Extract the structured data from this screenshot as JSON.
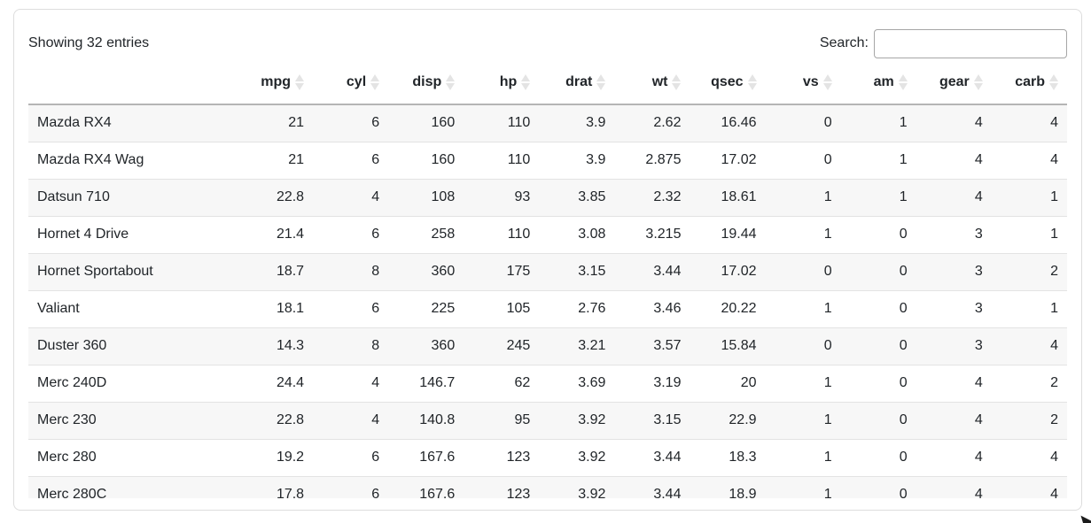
{
  "table": {
    "showing_text": "Showing 32 entries",
    "search_label": "Search:",
    "search_value": "",
    "columns": [
      "",
      "mpg",
      "cyl",
      "disp",
      "hp",
      "drat",
      "wt",
      "qsec",
      "vs",
      "am",
      "gear",
      "carb"
    ],
    "rows": [
      {
        "name": "Mazda RX4",
        "values": [
          "21",
          "6",
          "160",
          "110",
          "3.9",
          "2.62",
          "16.46",
          "0",
          "1",
          "4",
          "4"
        ]
      },
      {
        "name": "Mazda RX4 Wag",
        "values": [
          "21",
          "6",
          "160",
          "110",
          "3.9",
          "2.875",
          "17.02",
          "0",
          "1",
          "4",
          "4"
        ]
      },
      {
        "name": "Datsun 710",
        "values": [
          "22.8",
          "4",
          "108",
          "93",
          "3.85",
          "2.32",
          "18.61",
          "1",
          "1",
          "4",
          "1"
        ]
      },
      {
        "name": "Hornet 4 Drive",
        "values": [
          "21.4",
          "6",
          "258",
          "110",
          "3.08",
          "3.215",
          "19.44",
          "1",
          "0",
          "3",
          "1"
        ]
      },
      {
        "name": "Hornet Sportabout",
        "values": [
          "18.7",
          "8",
          "360",
          "175",
          "3.15",
          "3.44",
          "17.02",
          "0",
          "0",
          "3",
          "2"
        ]
      },
      {
        "name": "Valiant",
        "values": [
          "18.1",
          "6",
          "225",
          "105",
          "2.76",
          "3.46",
          "20.22",
          "1",
          "0",
          "3",
          "1"
        ]
      },
      {
        "name": "Duster 360",
        "values": [
          "14.3",
          "8",
          "360",
          "245",
          "3.21",
          "3.57",
          "15.84",
          "0",
          "0",
          "3",
          "4"
        ]
      },
      {
        "name": "Merc 240D",
        "values": [
          "24.4",
          "4",
          "146.7",
          "62",
          "3.69",
          "3.19",
          "20",
          "1",
          "0",
          "4",
          "2"
        ]
      },
      {
        "name": "Merc 230",
        "values": [
          "22.8",
          "4",
          "140.8",
          "95",
          "3.92",
          "3.15",
          "22.9",
          "1",
          "0",
          "4",
          "2"
        ]
      },
      {
        "name": "Merc 280",
        "values": [
          "19.2",
          "6",
          "167.6",
          "123",
          "3.92",
          "3.44",
          "18.3",
          "1",
          "0",
          "4",
          "4"
        ]
      },
      {
        "name": "Merc 280C",
        "values": [
          "17.8",
          "6",
          "167.6",
          "123",
          "3.92",
          "3.44",
          "18.9",
          "1",
          "0",
          "4",
          "4"
        ]
      }
    ]
  },
  "colors": {
    "stripe_row": "#f7f7f7",
    "row_border": "#e3e3e3",
    "header_border": "#b5b5b5",
    "card_border": "#dddddd",
    "sort_icon": "#e4e4e4",
    "text": "#212529"
  }
}
